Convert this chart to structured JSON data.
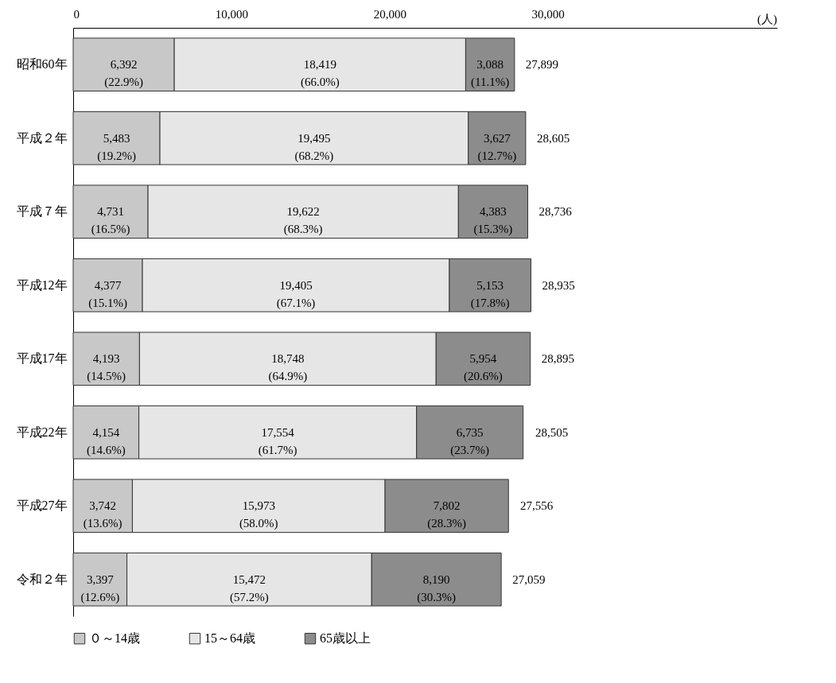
{
  "chart_data": {
    "type": "bar",
    "orientation": "horizontal",
    "stacked": true,
    "xlabel": "(人)",
    "categories": [
      "昭和60年",
      "平成２年",
      "平成７年",
      "平成12年",
      "平成17年",
      "平成22年",
      "平成27年",
      "令和２年"
    ],
    "series": [
      {
        "name": "０～14歳",
        "color": "#c8c8c8",
        "values": [
          6392,
          5483,
          4731,
          4377,
          4193,
          4154,
          3742,
          3397
        ],
        "value_labels": [
          "6,392\n(22.9%)",
          "5,483\n(19.2%)",
          "4,731\n(16.5%)",
          "4,377\n(15.1%)",
          "4,193\n(14.5%)",
          "4,154\n(14.6%)",
          "3,742\n(13.6%)",
          "3,397\n(12.6%)"
        ]
      },
      {
        "name": "15～64歳",
        "color": "#e6e6e6",
        "values": [
          18419,
          19495,
          19622,
          19405,
          18748,
          17554,
          15973,
          15472
        ],
        "value_labels": [
          "18,419\n(66.0%)",
          "19,495\n(68.2%)",
          "19,622\n(68.3%)",
          "19,405\n(67.1%)",
          "18,748\n(64.9%)",
          "17,554\n(61.7%)",
          "15,973\n(58.0%)",
          "15,472\n(57.2%)"
        ]
      },
      {
        "name": "65歳以上",
        "color": "#8c8c8c",
        "values": [
          3088,
          3627,
          4383,
          5153,
          5954,
          6735,
          7802,
          8190
        ],
        "value_labels": [
          "3,088\n(11.1%)",
          "3,627\n(12.7%)",
          "4,383\n(15.3%)",
          "5,153\n(17.8%)",
          "5,954\n(20.6%)",
          "6,735\n(23.7%)",
          "7,802\n(28.3%)",
          "8,190\n(30.3%)"
        ]
      }
    ],
    "annotations": [
      {
        "text": "27,899",
        "x": 27899,
        "y": "昭和60年"
      },
      {
        "text": "28,605",
        "x": 28605,
        "y": "平成２年"
      },
      {
        "text": "28,736",
        "x": 28736,
        "y": "平成７年"
      },
      {
        "text": "28,935",
        "x": 28935,
        "y": "平成12年"
      },
      {
        "text": "28,895",
        "x": 28895,
        "y": "平成17年"
      },
      {
        "text": "28,505",
        "x": 28505,
        "y": "平成22年"
      },
      {
        "text": "27,556",
        "x": 27556,
        "y": "平成27年"
      },
      {
        "text": "27,059",
        "x": 27059,
        "y": "令和２年"
      }
    ],
    "xlim": [
      0,
      44500
    ],
    "xticks": [
      0,
      {
        "value": 10000,
        "label": "10,000"
      },
      {
        "value": 20000,
        "label": "20,000"
      },
      {
        "value": 30000,
        "label": "30,000"
      }
    ],
    "grid": false,
    "legend": "bottom"
  }
}
